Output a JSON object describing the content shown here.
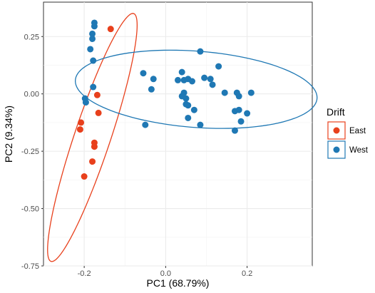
{
  "chart_data": {
    "type": "scatter",
    "xlabel": "PC1 (68.79%)",
    "ylabel": "PC2 (9.34%)",
    "xlim": [
      -0.3,
      0.36
    ],
    "ylim": [
      -0.75,
      0.4
    ],
    "xticks": [
      -0.2,
      0.0,
      0.2
    ],
    "xtick_labels": [
      "-0.2",
      "0.0",
      "0.2"
    ],
    "yticks": [
      0.25,
      0.0,
      -0.25,
      -0.5,
      -0.75
    ],
    "ytick_labels": [
      "0.25",
      "0.00",
      "-0.25",
      "-0.50",
      "-0.75"
    ],
    "grid": true,
    "legend": {
      "title": "Drift",
      "position": "right",
      "entries": [
        "East",
        "West"
      ]
    },
    "series": [
      {
        "name": "East",
        "color": "#E8401C",
        "points": [
          [
            -0.135,
            0.283
          ],
          [
            -0.168,
            -0.005
          ],
          [
            -0.165,
            -0.083
          ],
          [
            -0.208,
            -0.125
          ],
          [
            -0.21,
            -0.155
          ],
          [
            -0.175,
            -0.213
          ],
          [
            -0.175,
            -0.23
          ],
          [
            -0.18,
            -0.295
          ],
          [
            -0.2,
            -0.36
          ]
        ],
        "ellipse": {
          "center": [
            -0.18,
            -0.19
          ],
          "semi_major": 0.55,
          "semi_minor": 0.046,
          "angle_deg": 79.5
        }
      },
      {
        "name": "West",
        "color": "#1F78B4",
        "points": [
          [
            -0.175,
            0.31
          ],
          [
            -0.175,
            0.295
          ],
          [
            -0.18,
            0.262
          ],
          [
            -0.18,
            0.24
          ],
          [
            -0.185,
            0.195
          ],
          [
            -0.178,
            0.145
          ],
          [
            -0.178,
            0.03
          ],
          [
            -0.198,
            -0.02
          ],
          [
            -0.196,
            -0.037
          ],
          [
            -0.055,
            0.09
          ],
          [
            -0.03,
            0.065
          ],
          [
            -0.035,
            0.02
          ],
          [
            -0.05,
            -0.135
          ],
          [
            0.03,
            0.06
          ],
          [
            0.04,
            0.095
          ],
          [
            0.045,
            0.06
          ],
          [
            0.055,
            0.065
          ],
          [
            0.065,
            0.055
          ],
          [
            0.085,
            0.185
          ],
          [
            0.095,
            0.07
          ],
          [
            0.11,
            0.065
          ],
          [
            0.13,
            0.12
          ],
          [
            0.115,
            0.04
          ],
          [
            0.045,
            0.005
          ],
          [
            0.04,
            -0.01
          ],
          [
            0.05,
            -0.02
          ],
          [
            0.05,
            -0.045
          ],
          [
            0.055,
            -0.05
          ],
          [
            0.07,
            -0.07
          ],
          [
            0.055,
            -0.105
          ],
          [
            0.085,
            -0.135
          ],
          [
            0.145,
            0.005
          ],
          [
            0.175,
            0.005
          ],
          [
            0.18,
            -0.01
          ],
          [
            0.21,
            0.005
          ],
          [
            0.17,
            -0.075
          ],
          [
            0.18,
            -0.07
          ],
          [
            0.2,
            -0.085
          ],
          [
            0.185,
            -0.12
          ],
          [
            0.17,
            -0.16
          ]
        ],
        "ellipse": {
          "center": [
            0.075,
            0.02
          ],
          "semi_major": 0.3,
          "semi_minor": 0.165,
          "angle_deg": -10
        }
      }
    ]
  }
}
